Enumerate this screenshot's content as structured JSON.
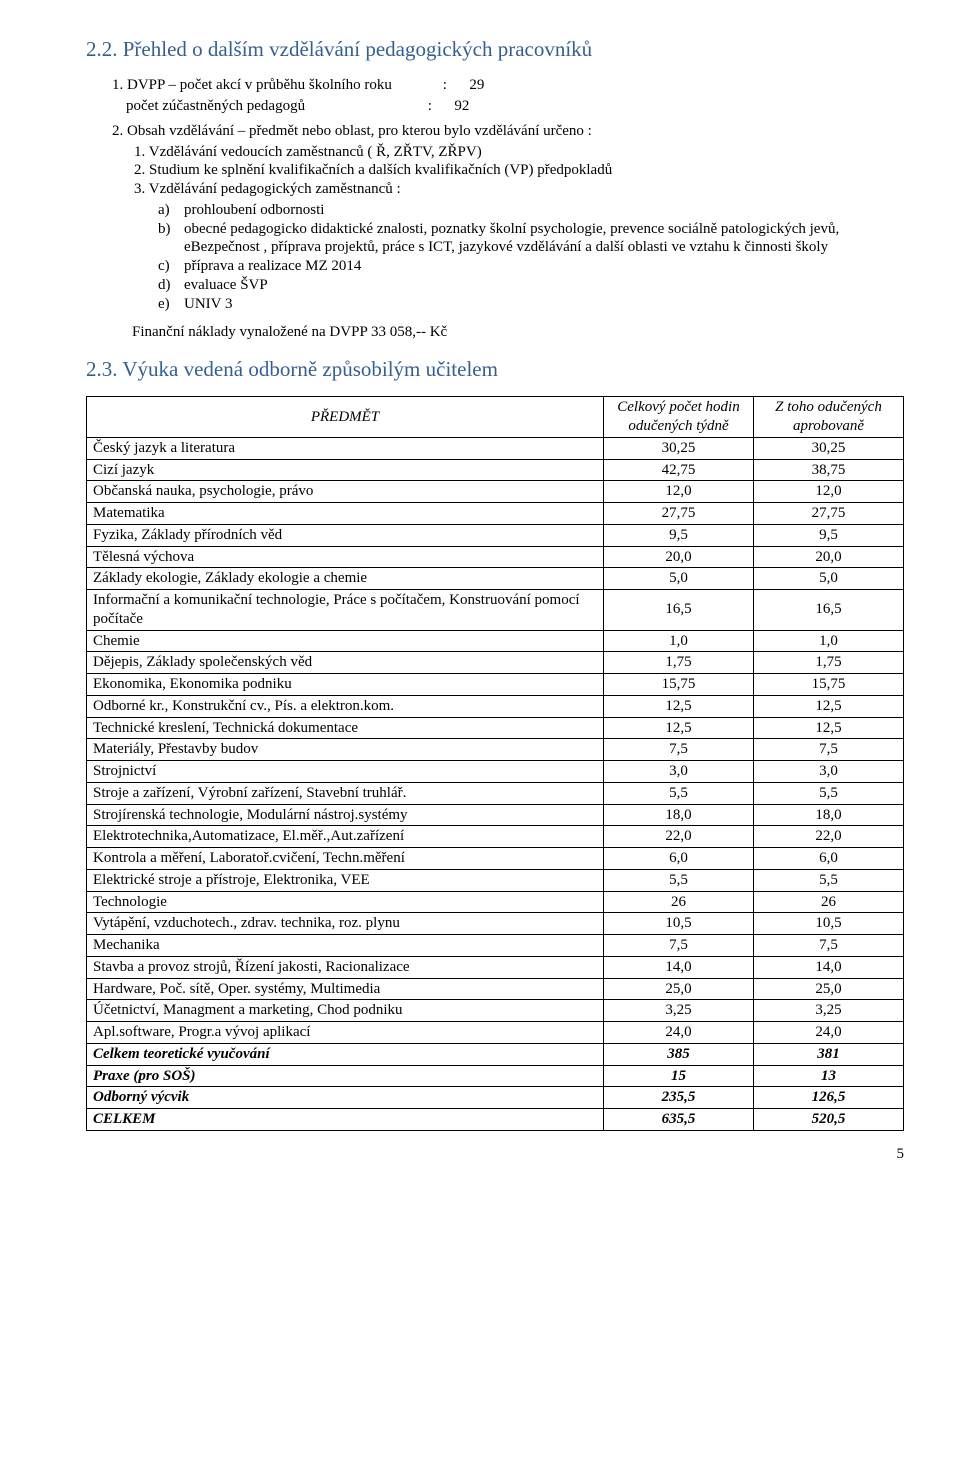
{
  "section1": {
    "heading": "2.2.  Přehled o dalším vzdělávání pedagogických pracovníků",
    "item1": {
      "prefix": "1.",
      "line1_label": "DVPP – počet akcí v průběhu školního roku",
      "line1_value": "29",
      "line2_label": "počet zúčastněných pedagogů",
      "line2_value": "92"
    },
    "item2": {
      "prefix": "2.",
      "label": "Obsah vzdělávání  – předmět nebo oblast, pro kterou bylo vzdělávání určeno :",
      "sub1": {
        "prefix": "1.",
        "text": "Vzdělávání vedoucích zaměstnanců ( Ř, ZŘTV, ZŘPV)"
      },
      "sub2": {
        "prefix": "2.",
        "text": "Studium ke splnění kvalifikačních a dalších kvalifikačních (VP) předpokladů"
      },
      "sub3": {
        "prefix": "3.",
        "text": "Vzdělávání pedagogických zaměstnanců :"
      },
      "a": {
        "letter": "a)",
        "text": "prohloubení odbornosti"
      },
      "b": {
        "letter": "b)",
        "text": "obecné pedagogicko didaktické znalosti, poznatky školní psychologie, prevence sociálně patologických jevů, eBezpečnost , příprava projektů, práce s ICT, jazykové vzdělávání a další oblasti ve vztahu k činnosti školy"
      },
      "c": {
        "letter": "c)",
        "text": "příprava a realizace MZ 2014"
      },
      "d": {
        "letter": "d)",
        "text": "evaluace ŠVP"
      },
      "e": {
        "letter": "e)",
        "text": " UNIV 3"
      }
    },
    "financial": "Finanční náklady vynaložené na DVPP  33 058,-- Kč"
  },
  "section2": {
    "heading": "2.3. Výuka vedená odborně způsobilým učitelem",
    "headers": {
      "subject": "PŘEDMĚT",
      "total": "Celkový\npočet hodin odučených\ntýdně",
      "approved": "Z toho odučených\naprobovaně"
    },
    "rows": [
      {
        "s": "Český jazyk a literatura",
        "t": "30,25",
        "a": "30,25",
        "b": false
      },
      {
        "s": "Cizí jazyk",
        "t": "42,75",
        "a": "38,75",
        "b": false
      },
      {
        "s": "Občanská nauka, psychologie, právo",
        "t": "12,0",
        "a": "12,0",
        "b": false
      },
      {
        "s": "Matematika",
        "t": "27,75",
        "a": "27,75",
        "b": false
      },
      {
        "s": "Fyzika, Základy přírodních věd",
        "t": "9,5",
        "a": "9,5",
        "b": false
      },
      {
        "s": "Tělesná výchova",
        "t": "20,0",
        "a": "20,0",
        "b": false
      },
      {
        "s": "Základy ekologie, Základy ekologie a chemie",
        "t": "5,0",
        "a": "5,0",
        "b": false
      },
      {
        "s": "Informační a komunikační technologie, Práce s počítačem, Konstruování pomocí počítače",
        "t": "16,5",
        "a": "16,5",
        "b": false
      },
      {
        "s": "Chemie",
        "t": "1,0",
        "a": "1,0",
        "b": false
      },
      {
        "s": "Dějepis, Základy společenských věd",
        "t": "1,75",
        "a": "1,75",
        "b": false
      },
      {
        "s": "Ekonomika, Ekonomika podniku",
        "t": "15,75",
        "a": "15,75",
        "b": false
      },
      {
        "s": "Odborné kr., Konstrukční cv., Pís. a elektron.kom.",
        "t": "12,5",
        "a": "12,5",
        "b": false
      },
      {
        "s": "Technické kreslení,  Technická dokumentace",
        "t": "12,5",
        "a": "12,5",
        "b": false
      },
      {
        "s": "Materiály, Přestavby budov",
        "t": "7,5",
        "a": "7,5",
        "b": false
      },
      {
        "s": "Strojnictví",
        "t": "3,0",
        "a": "3,0",
        "b": false
      },
      {
        "s": "Stroje a zařízení, Výrobní zařízení, Stavební truhlář.",
        "t": "5,5",
        "a": "5,5",
        "b": false
      },
      {
        "s": "Strojírenská technologie, Modulární nástroj.systémy",
        "t": "18,0",
        "a": "18,0",
        "b": false
      },
      {
        "s": "Elektrotechnika,Automatizace, El.měř.,Aut.zařízení",
        "t": "22,0",
        "a": "22,0",
        "b": false
      },
      {
        "s": "Kontrola a měření, Laboratoř.cvičení, Techn.měření",
        "t": "6,0",
        "a": "6,0",
        "b": false
      },
      {
        "s": "Elektrické stroje a přístroje, Elektronika, VEE",
        "t": "5,5",
        "a": "5,5",
        "b": false
      },
      {
        "s": "Technologie",
        "t": "26",
        "a": "26",
        "b": false
      },
      {
        "s": "Vytápění, vzduchotech., zdrav. technika, roz. plynu",
        "t": "10,5",
        "a": "10,5",
        "b": false
      },
      {
        "s": "Mechanika",
        "t": "7,5",
        "a": "7,5",
        "b": false
      },
      {
        "s": "Stavba a provoz strojů, Řízení jakosti, Racionalizace",
        "t": "14,0",
        "a": "14,0",
        "b": false
      },
      {
        "s": "Hardware, Poč. sítě, Oper. systémy,  Multimedia",
        "t": "25,0",
        "a": "25,0",
        "b": false
      },
      {
        "s": "Účetnictví, Managment a marketing, Chod podniku",
        "t": "3,25",
        "a": "3,25",
        "b": false
      },
      {
        "s": "Apl.software, Progr.a vývoj aplikací",
        "t": "24,0",
        "a": "24,0",
        "b": false
      },
      {
        "s": "Celkem teoretické vyučování",
        "t": "385",
        "a": "381",
        "b": true
      },
      {
        "s": "Praxe      (pro SOŠ)",
        "t": "15",
        "a": "13",
        "b": true
      },
      {
        "s": "Odborný výcvik",
        "t": "235,5",
        "a": "126,5",
        "b": true
      },
      {
        "s": "CELKEM",
        "t": "635,5",
        "a": "520,5",
        "b": true
      }
    ]
  },
  "page_number": "5"
}
